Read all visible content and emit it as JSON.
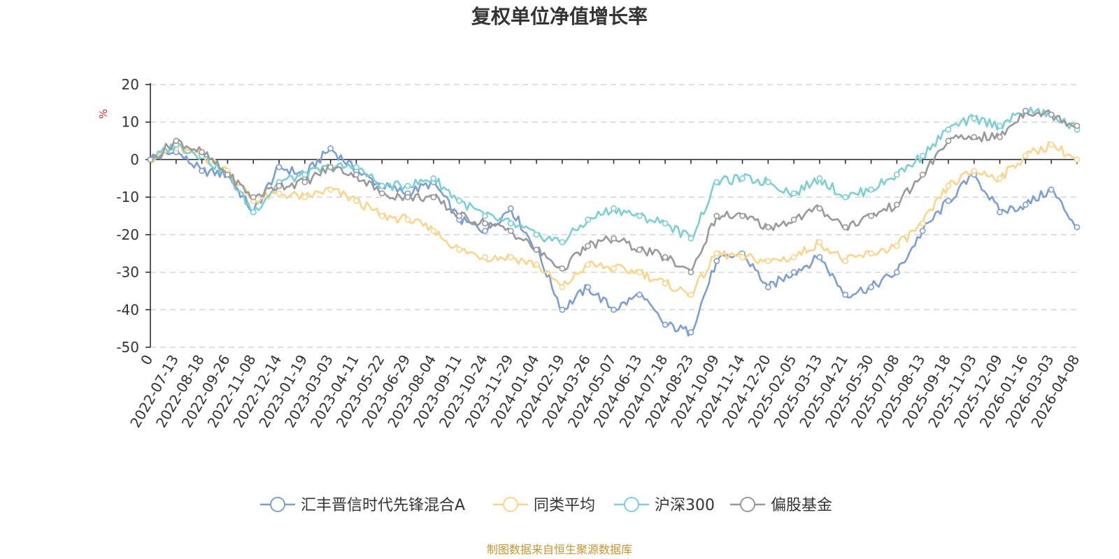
{
  "chart_data": {
    "type": "line",
    "title": "复权单位净值增长率",
    "ylabel": "%",
    "xlabel": "",
    "ylim": [
      -50,
      20
    ],
    "yticks": [
      20,
      10,
      0,
      -10,
      -20,
      -30,
      -40,
      -50
    ],
    "grid": true,
    "legend_position": "bottom",
    "categories": [
      "0",
      "2022-07-13",
      "2022-08-18",
      "2022-09-26",
      "2022-11-08",
      "2022-12-14",
      "2023-01-19",
      "2023-03-03",
      "2023-04-11",
      "2023-05-22",
      "2023-06-29",
      "2023-08-04",
      "2023-09-11",
      "2023-10-24",
      "2023-11-29",
      "2024-01-04",
      "2024-02-19",
      "2024-03-26",
      "2024-05-07",
      "2024-06-13",
      "2024-07-18",
      "2024-08-23",
      "2024-10-09",
      "2024-11-14",
      "2024-12-20",
      "2025-02-05",
      "2025-03-13",
      "2025-04-21",
      "2025-05-30",
      "2025-07-08",
      "2025-08-13",
      "2025-09-18",
      "2025-11-03",
      "2025-12-09",
      "2026-01-16",
      "2026-03-03",
      "2026-04-08"
    ],
    "series": [
      {
        "name": "汇丰晋信时代先锋混合A",
        "color": "#7b9fd4",
        "values": [
          0,
          2,
          -3,
          -4,
          -14,
          -2,
          -4,
          3,
          -3,
          -7,
          -9,
          -6,
          -16,
          -19,
          -13,
          -24,
          -40,
          -34,
          -40,
          -36,
          -44,
          -46,
          -27,
          -25,
          -34,
          -30,
          -26,
          -36,
          -34,
          -30,
          -19,
          -11,
          -4,
          -14,
          -12,
          -8,
          -18
        ]
      },
      {
        "name": "同类平均",
        "color": "#fcd58a",
        "values": [
          0,
          3,
          1,
          -3,
          -11,
          -9,
          -10,
          -8,
          -11,
          -15,
          -16,
          -19,
          -24,
          -26,
          -26,
          -28,
          -34,
          -28,
          -29,
          -30,
          -33,
          -36,
          -25,
          -26,
          -27,
          -26,
          -22,
          -27,
          -25,
          -23,
          -17,
          -7,
          -3,
          -5,
          1,
          4,
          0
        ]
      },
      {
        "name": "沪深300",
        "color": "#7ad0d4",
        "values": [
          0,
          4,
          1,
          -4,
          -14,
          -6,
          -4,
          -2,
          -2,
          -7,
          -7,
          -5,
          -11,
          -15,
          -17,
          -20,
          -22,
          -16,
          -13,
          -15,
          -17,
          -21,
          -6,
          -5,
          -6,
          -9,
          -5,
          -10,
          -8,
          -4,
          1,
          8,
          11,
          9,
          13,
          12,
          8
        ]
      },
      {
        "name": "偏股基金",
        "color": "#999999",
        "values": [
          0,
          5,
          2,
          -4,
          -10,
          -7,
          -6,
          -2,
          -4,
          -9,
          -10,
          -10,
          -15,
          -17,
          -19,
          -24,
          -29,
          -23,
          -21,
          -24,
          -26,
          -30,
          -15,
          -15,
          -18,
          -16,
          -13,
          -18,
          -15,
          -12,
          -4,
          5,
          6,
          6,
          13,
          12,
          9
        ]
      }
    ],
    "legend": [
      "汇丰晋信时代先锋混合A",
      "同类平均",
      "沪深300",
      "偏股基金"
    ],
    "source": "制图数据来自恒生聚源数据库"
  }
}
